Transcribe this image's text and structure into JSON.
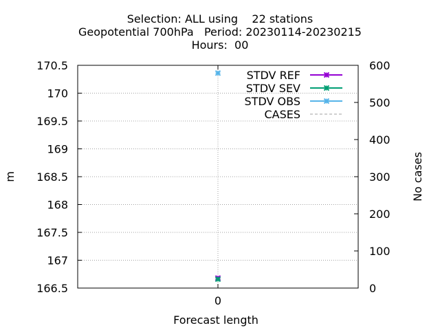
{
  "chart_data": {
    "type": "line",
    "title_lines": [
      "Selection: ALL using    22 stations",
      "Geopotential 700hPa   Period: 20230114-20230215",
      "Hours:  00"
    ],
    "xlabel": "Forecast length",
    "ylabel": "m",
    "y2label": "No cases",
    "x": [
      0
    ],
    "x_ticks": [
      "0"
    ],
    "ylim": [
      166.5,
      170.5
    ],
    "y_ticks": [
      "166.5",
      "167",
      "167.5",
      "168",
      "168.5",
      "169",
      "169.5",
      "170",
      "170.5"
    ],
    "y2lim": [
      0,
      600
    ],
    "y2_ticks": [
      "0",
      "100",
      "200",
      "300",
      "400",
      "500",
      "600"
    ],
    "grid": true,
    "legend_position": "top-right",
    "series": [
      {
        "name": "STDV REF",
        "values": [
          166.68
        ],
        "color": "#9400d3",
        "marker": "x",
        "axis": "y"
      },
      {
        "name": "STDV SEV",
        "values": [
          166.66
        ],
        "color": "#009e73",
        "marker": "x",
        "axis": "y"
      },
      {
        "name": "STDV OBS",
        "values": [
          170.36
        ],
        "color": "#56b4e9",
        "marker": "x",
        "axis": "y"
      },
      {
        "name": "CASES",
        "values": [
          580
        ],
        "color": "#a0a0a0",
        "marker": "none",
        "dashed": true,
        "axis": "y2"
      }
    ]
  }
}
